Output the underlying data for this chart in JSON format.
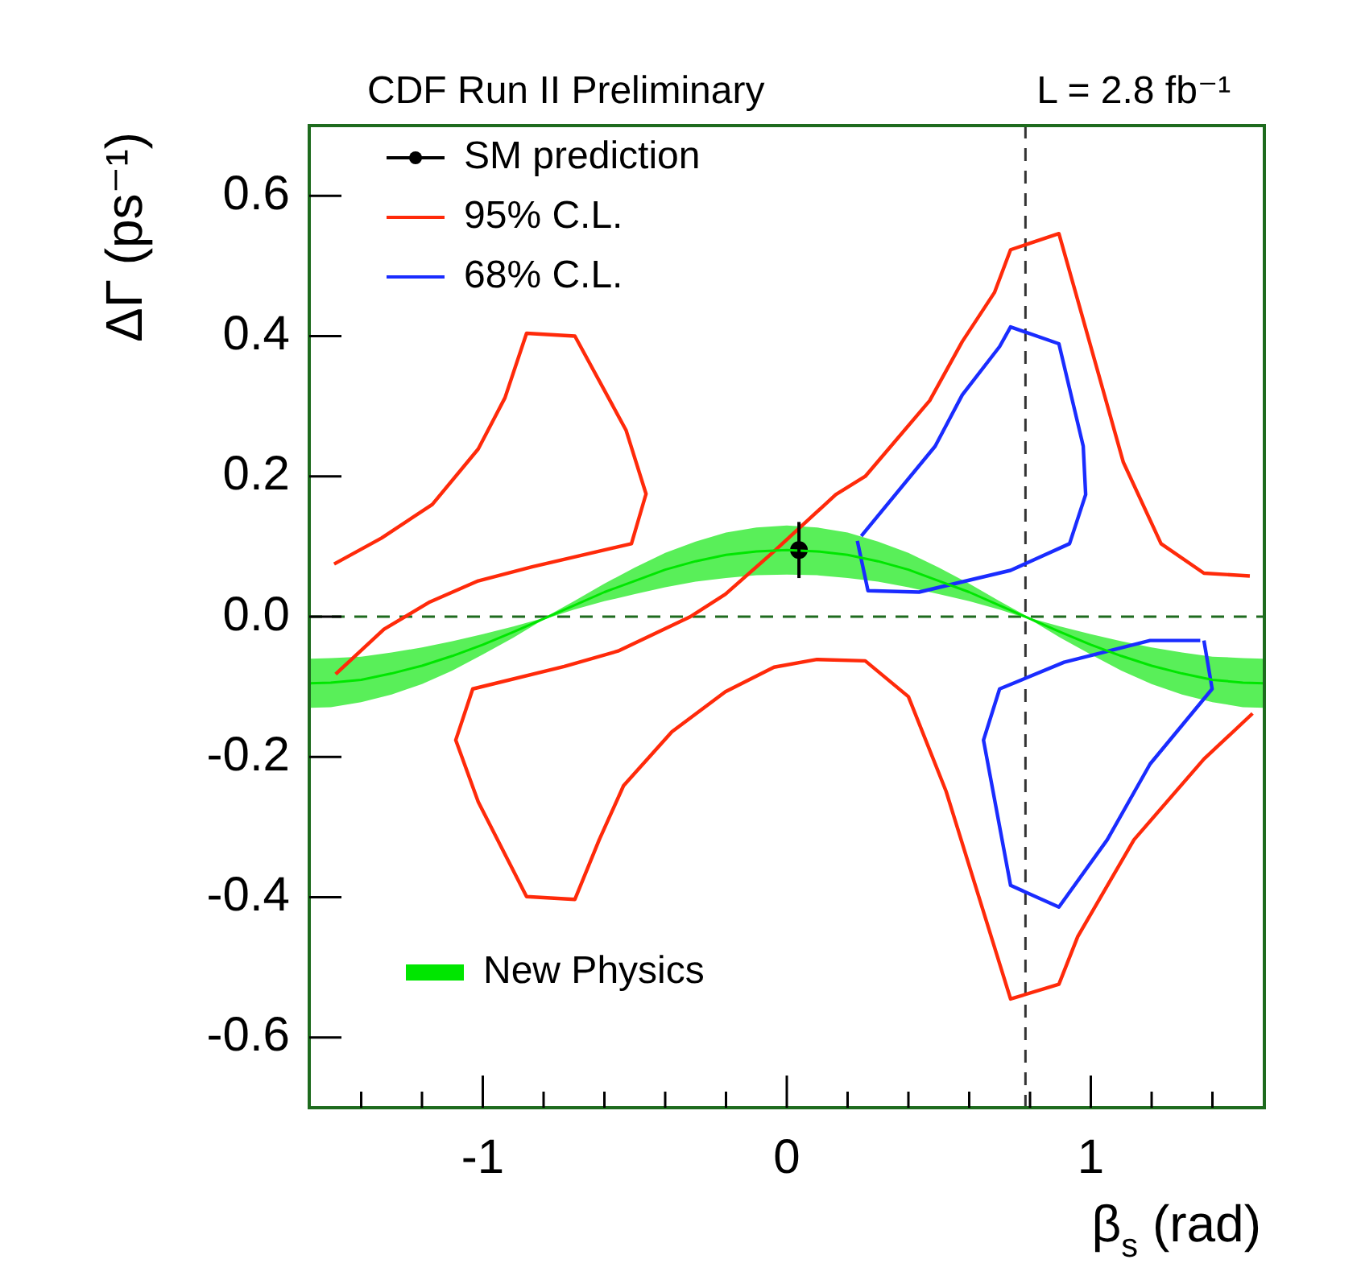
{
  "chart_data": {
    "type": "line",
    "title": "CDF Run II Preliminary",
    "annotations": [
      "L = 2.8 fb⁻¹"
    ],
    "xlabel": "β$_{s}$ (rad)",
    "ylabel": "ΔΓ (ps⁻¹)",
    "xlim": [
      -1.5708,
      1.5708
    ],
    "ylim": [
      -0.7,
      0.7
    ],
    "xticks": [
      {
        "value": -1.4,
        "label": null
      },
      {
        "value": -1.2,
        "label": null
      },
      -1,
      {
        "value": -0.8,
        "label": null
      },
      {
        "value": -0.6,
        "label": null
      },
      {
        "value": -0.4,
        "label": null
      },
      {
        "value": -0.2,
        "label": null
      },
      0,
      {
        "value": 0.2,
        "label": null
      },
      {
        "value": 0.4,
        "label": null
      },
      {
        "value": 0.6,
        "label": null
      },
      {
        "value": 0.8,
        "label": null
      },
      1,
      {
        "value": 1.2,
        "label": null
      },
      {
        "value": 1.4,
        "label": null
      }
    ],
    "yticks": [
      -0.6,
      -0.4,
      -0.2,
      {
        "value": 0,
        "label": "0.0"
      },
      0.2,
      0.4,
      0.6
    ],
    "grid": false,
    "legend": "top left",
    "ref_lines": [
      {
        "axis": "y",
        "value": 0,
        "color": "#1e6b1e",
        "line_style": "dashed"
      },
      {
        "axis": "x",
        "value": 0.785,
        "color": "#333333",
        "line_style": "dashed"
      }
    ],
    "series": [
      {
        "name": "New Physics",
        "type": "line",
        "color": "#00e600",
        "x": [
          -1.57,
          -1.5,
          -1.4,
          -1.3,
          -1.2,
          -1.1,
          -1.0,
          -0.9,
          -0.8,
          -0.7,
          -0.6,
          -0.5,
          -0.4,
          -0.3,
          -0.2,
          -0.1,
          0,
          0.1,
          0.2,
          0.3,
          0.4,
          0.5,
          0.6,
          0.7,
          0.8,
          0.9,
          1.0,
          1.1,
          1.2,
          1.3,
          1.4,
          1.5,
          1.57
        ],
        "values": [
          -0.095,
          -0.094,
          -0.09,
          -0.081,
          -0.07,
          -0.056,
          -0.04,
          -0.022,
          -0.003,
          0.016,
          0.035,
          0.051,
          0.067,
          0.079,
          0.088,
          0.093,
          0.095,
          0.093,
          0.088,
          0.079,
          0.067,
          0.051,
          0.035,
          0.016,
          -0.003,
          -0.022,
          -0.04,
          -0.056,
          -0.07,
          -0.081,
          -0.09,
          -0.094,
          -0.095
        ],
        "lower": [
          -0.13,
          -0.129,
          -0.122,
          -0.111,
          -0.096,
          -0.077,
          -0.054,
          -0.03,
          -0.004,
          0.01,
          0.022,
          0.032,
          0.042,
          0.05,
          0.055,
          0.059,
          0.06,
          0.059,
          0.055,
          0.05,
          0.042,
          0.032,
          0.022,
          0.01,
          -0.004,
          -0.03,
          -0.054,
          -0.077,
          -0.096,
          -0.111,
          -0.122,
          -0.129,
          -0.13
        ],
        "upper": [
          -0.06,
          -0.059,
          -0.057,
          -0.051,
          -0.044,
          -0.035,
          -0.025,
          -0.014,
          -0.002,
          0.022,
          0.047,
          0.07,
          0.091,
          0.107,
          0.12,
          0.127,
          0.13,
          0.127,
          0.12,
          0.107,
          0.091,
          0.07,
          0.047,
          0.022,
          -0.002,
          -0.014,
          -0.025,
          -0.035,
          -0.044,
          -0.051,
          -0.057,
          -0.059,
          -0.06
        ]
      },
      {
        "name": "SM prediction",
        "type": "scatter",
        "color": "#000000",
        "marker": "circle",
        "x": [
          0.04
        ],
        "values": [
          0.095
        ],
        "errors": [
          0.04
        ]
      },
      {
        "name": "95% C.L.",
        "type": "line",
        "color": "#ff2a0a",
        "x": [
          -1.489,
          -1.333,
          -1.166,
          -1.015,
          -0.927,
          -0.856,
          -0.697,
          -0.529,
          -0.463,
          -0.511,
          -0.838,
          -1.015,
          -1.174,
          -1.325,
          -1.484,
          null,
          1.523,
          1.372,
          1.231,
          1.107,
          0.948,
          0.895,
          0.736,
          0.683,
          0.577,
          0.47,
          0.258,
          0.161,
          -0.042,
          -0.202,
          -0.317,
          -0.555,
          -0.732,
          -1.033,
          -1.089,
          -1.015,
          -0.856,
          -0.697,
          -0.617,
          -0.537,
          -0.378,
          -0.202,
          -0.042,
          0.099,
          0.258,
          0.4,
          0.524,
          0.736,
          0.895,
          0.957,
          1.142,
          1.372,
          1.532
        ],
        "values": [
          0.075,
          0.112,
          0.16,
          0.239,
          0.312,
          0.404,
          0.4,
          0.266,
          0.175,
          0.104,
          0.071,
          0.051,
          0.021,
          -0.018,
          -0.082,
          null,
          0.058,
          0.062,
          0.104,
          0.22,
          0.465,
          0.546,
          0.523,
          0.462,
          0.392,
          0.308,
          0.2,
          0.174,
          0.093,
          0.032,
          0.0,
          -0.049,
          -0.071,
          -0.103,
          -0.176,
          -0.264,
          -0.399,
          -0.403,
          -0.318,
          -0.241,
          -0.164,
          -0.107,
          -0.072,
          -0.061,
          -0.063,
          -0.114,
          -0.249,
          -0.545,
          -0.524,
          -0.456,
          -0.318,
          -0.203,
          -0.138
        ]
      },
      {
        "name": "68% C.L.",
        "type": "line",
        "color": "#1a2cff",
        "x": [
          0.232,
          0.267,
          0.435,
          0.736,
          0.93,
          0.983,
          0.975,
          0.895,
          0.736,
          0.7,
          0.577,
          0.488,
          0.245
        ],
        "values": [
          0.108,
          0.037,
          0.035,
          0.066,
          0.104,
          0.174,
          0.243,
          0.389,
          0.413,
          0.385,
          0.316,
          0.243,
          0.115
        ]
      },
      {
        "type": "line",
        "color": "#1a2cff",
        "x": [
          1.372,
          1.399,
          1.195,
          1.054,
          0.895,
          0.736,
          0.647,
          0.7,
          0.912,
          1.195,
          1.36
        ],
        "values": [
          -0.034,
          -0.103,
          -0.21,
          -0.318,
          -0.414,
          -0.383,
          -0.176,
          -0.103,
          -0.065,
          -0.034,
          -0.034
        ]
      }
    ]
  }
}
